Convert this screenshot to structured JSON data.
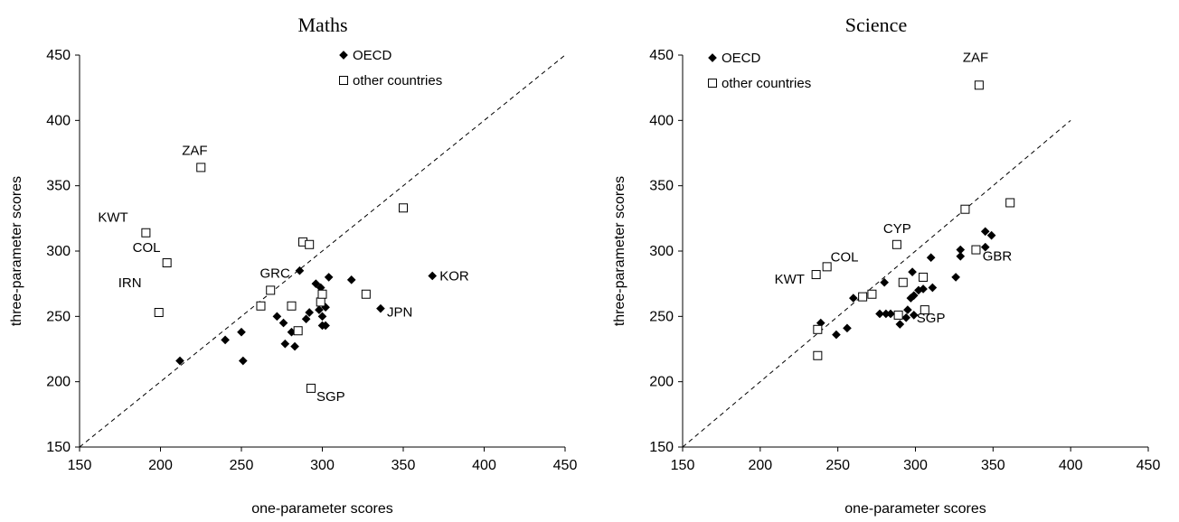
{
  "chart_data": [
    {
      "type": "scatter",
      "title": "Maths",
      "xlabel": "one-parameter scores",
      "ylabel": "three-parameter scores",
      "xlim": [
        150,
        450
      ],
      "ylim": [
        150,
        450
      ],
      "xticks": [
        "150",
        "200",
        "250",
        "300",
        "350",
        "400",
        "450"
      ],
      "yticks": [
        "150",
        "200",
        "250",
        "300",
        "350",
        "400",
        "450"
      ],
      "legend": {
        "placement": "top",
        "oecd_label": "OECD",
        "other_label": "other countries"
      },
      "reference_line": {
        "style": "dashed",
        "from": [
          150,
          150
        ],
        "to": [
          450,
          450
        ]
      },
      "series": [
        {
          "name": "OECD",
          "marker": "diamond",
          "points": [
            [
              212,
              216
            ],
            [
              240,
              232
            ],
            [
              250,
              238
            ],
            [
              251,
              216
            ],
            [
              272,
              250
            ],
            [
              276,
              245
            ],
            [
              277,
              229
            ],
            [
              281,
              238
            ],
            [
              283,
              227
            ],
            [
              286,
              285
            ],
            [
              290,
              248
            ],
            [
              292,
              253
            ],
            [
              296,
              275
            ],
            [
              298,
              255
            ],
            [
              299,
              272
            ],
            [
              300,
              250
            ],
            [
              300,
              243
            ],
            [
              302,
              257
            ],
            [
              302,
              243
            ],
            [
              304,
              280
            ],
            [
              318,
              278
            ],
            [
              336,
              256
            ],
            [
              368,
              281
            ]
          ]
        },
        {
          "name": "other countries",
          "marker": "square",
          "points": [
            [
              191,
              314
            ],
            [
              199,
              253
            ],
            [
              204,
              291
            ],
            [
              225,
              364
            ],
            [
              262,
              258
            ],
            [
              268,
              270
            ],
            [
              281,
              258
            ],
            [
              285,
              239
            ],
            [
              288,
              307
            ],
            [
              292,
              305
            ],
            [
              293,
              195
            ],
            [
              299,
              261
            ],
            [
              300,
              267
            ],
            [
              327,
              267
            ],
            [
              350,
              333
            ]
          ]
        }
      ],
      "annotations": [
        {
          "text": "ZAF",
          "x": 225,
          "y": 364
        },
        {
          "text": "KWT",
          "x": 191,
          "y": 314
        },
        {
          "text": "COL",
          "x": 204,
          "y": 291
        },
        {
          "text": "IRN",
          "x": 199,
          "y": 253
        },
        {
          "text": "GRC",
          "x": 286,
          "y": 285
        },
        {
          "text": "KOR",
          "x": 368,
          "y": 281
        },
        {
          "text": "JPN",
          "x": 336,
          "y": 256
        },
        {
          "text": "SGP",
          "x": 293,
          "y": 195
        }
      ]
    },
    {
      "type": "scatter",
      "title": "Science",
      "xlabel": "one-parameter scores",
      "ylabel": "three-parameter scores",
      "xlim": [
        150,
        450
      ],
      "ylim": [
        150,
        450
      ],
      "xticks": [
        "150",
        "200",
        "250",
        "300",
        "350",
        "400",
        "450"
      ],
      "yticks": [
        "150",
        "200",
        "250",
        "300",
        "350",
        "400",
        "450"
      ],
      "legend": {
        "placement": "top-left",
        "oecd_label": "OECD",
        "other_label": "other countries"
      },
      "reference_line": {
        "style": "dashed",
        "from": [
          150,
          150
        ],
        "to": [
          400,
          400
        ]
      },
      "series": [
        {
          "name": "OECD",
          "marker": "diamond",
          "points": [
            [
              239,
              245
            ],
            [
              249,
              236
            ],
            [
              256,
              241
            ],
            [
              260,
              264
            ],
            [
              277,
              252
            ],
            [
              280,
              276
            ],
            [
              281,
              252
            ],
            [
              284,
              252
            ],
            [
              290,
              244
            ],
            [
              294,
              249
            ],
            [
              295,
              255
            ],
            [
              297,
              264
            ],
            [
              299,
              266
            ],
            [
              298,
              284
            ],
            [
              299,
              251
            ],
            [
              302,
              270
            ],
            [
              305,
              271
            ],
            [
              310,
              295
            ],
            [
              311,
              272
            ],
            [
              326,
              280
            ],
            [
              329,
              296
            ],
            [
              329,
              301
            ],
            [
              345,
              315
            ],
            [
              345,
              303
            ],
            [
              349,
              312
            ]
          ]
        },
        {
          "name": "other countries",
          "marker": "square",
          "points": [
            [
              236,
              282
            ],
            [
              237,
              240
            ],
            [
              237,
              220
            ],
            [
              243,
              288
            ],
            [
              266,
              265
            ],
            [
              272,
              267
            ],
            [
              288,
              305
            ],
            [
              289,
              251
            ],
            [
              292,
              276
            ],
            [
              305,
              280
            ],
            [
              306,
              255
            ],
            [
              332,
              332
            ],
            [
              339,
              301
            ],
            [
              341,
              427
            ],
            [
              361,
              337
            ]
          ]
        }
      ],
      "annotations": [
        {
          "text": "ZAF",
          "x": 341,
          "y": 427
        },
        {
          "text": "CYP",
          "x": 288,
          "y": 305
        },
        {
          "text": "COL",
          "x": 243,
          "y": 288
        },
        {
          "text": "KWT",
          "x": 236,
          "y": 282
        },
        {
          "text": "GBR",
          "x": 345,
          "y": 303
        },
        {
          "text": "SGP",
          "x": 306,
          "y": 255
        }
      ]
    }
  ]
}
